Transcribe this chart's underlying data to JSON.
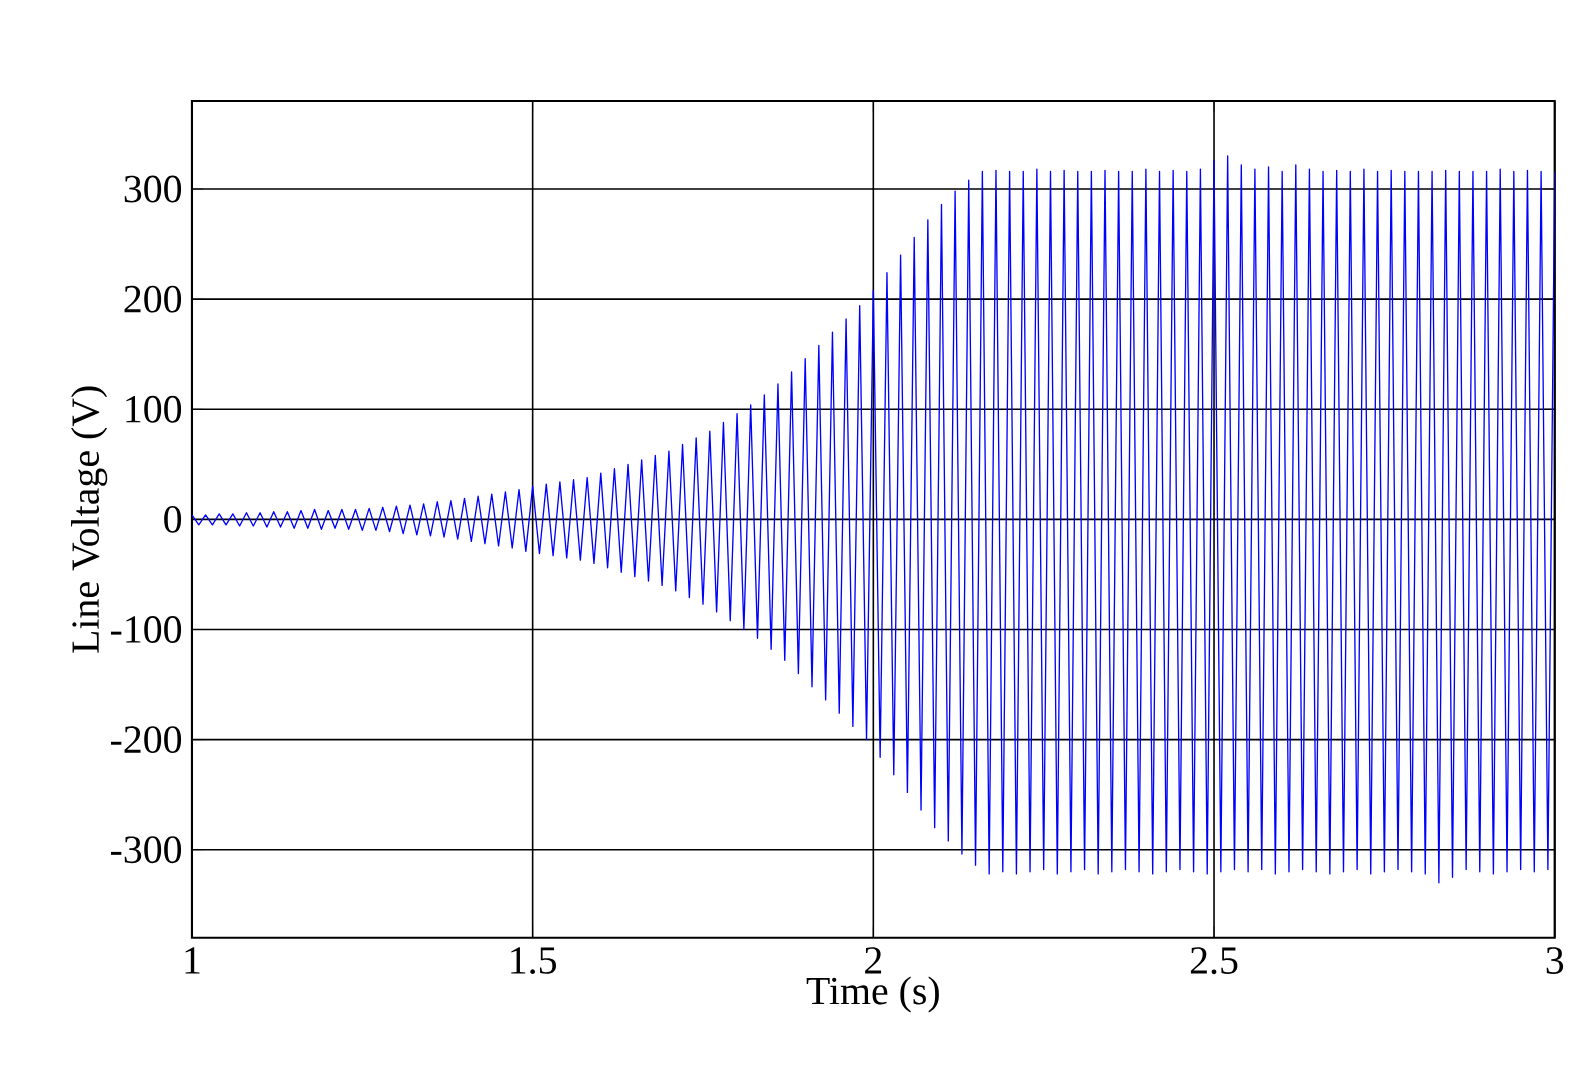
{
  "chart_data": {
    "type": "line",
    "xlabel": "Time (s)",
    "ylabel": "Line Voltage  (V)",
    "xlim": [
      1,
      3
    ],
    "ylim": [
      -380,
      380
    ],
    "xticks": [
      1,
      1.5,
      2,
      2.5,
      3
    ],
    "yticks": [
      -300,
      -200,
      -100,
      0,
      100,
      200,
      300
    ],
    "grid": true,
    "marker": "none",
    "line_style": "solid",
    "series": [
      {
        "color": "#0000ff",
        "x": [
          1,
          1.01,
          1.02,
          1.03,
          1.04,
          1.05,
          1.06,
          1.07,
          1.08,
          1.09,
          1.1,
          1.11,
          1.12,
          1.13,
          1.14,
          1.15,
          1.16,
          1.17,
          1.18,
          1.19,
          1.2,
          1.21,
          1.22,
          1.23,
          1.24,
          1.25,
          1.26,
          1.27,
          1.28,
          1.29,
          1.3,
          1.31,
          1.32,
          1.33,
          1.34,
          1.35,
          1.36,
          1.37,
          1.38,
          1.39,
          1.4,
          1.41,
          1.42,
          1.43,
          1.44,
          1.45,
          1.46,
          1.47,
          1.48,
          1.49,
          1.5,
          1.51,
          1.52,
          1.53,
          1.54,
          1.55,
          1.56,
          1.57,
          1.58,
          1.59,
          1.6,
          1.61,
          1.62,
          1.63,
          1.64,
          1.65,
          1.66,
          1.67,
          1.68,
          1.69,
          1.7,
          1.71,
          1.72,
          1.73,
          1.74,
          1.75,
          1.76,
          1.77,
          1.78,
          1.79,
          1.8,
          1.81,
          1.82,
          1.83,
          1.84,
          1.85,
          1.86,
          1.87,
          1.88,
          1.89,
          1.9,
          1.91,
          1.92,
          1.93,
          1.94,
          1.95,
          1.96,
          1.97,
          1.98,
          1.99,
          2,
          2.01,
          2.02,
          2.03,
          2.04,
          2.05,
          2.06,
          2.07,
          2.08,
          2.09,
          2.1,
          2.11,
          2.12,
          2.13,
          2.14,
          2.15,
          2.16,
          2.17,
          2.18,
          2.19,
          2.2,
          2.21,
          2.22,
          2.23,
          2.24,
          2.25,
          2.26,
          2.27,
          2.28,
          2.29,
          2.3,
          2.31,
          2.32,
          2.33,
          2.34,
          2.35,
          2.36,
          2.37,
          2.38,
          2.39,
          2.4,
          2.41,
          2.42,
          2.43,
          2.44,
          2.45,
          2.46,
          2.47,
          2.48,
          2.49,
          2.5,
          2.51,
          2.52,
          2.53,
          2.54,
          2.55,
          2.56,
          2.57,
          2.58,
          2.59,
          2.6,
          2.61,
          2.62,
          2.63,
          2.64,
          2.65,
          2.66,
          2.67,
          2.68,
          2.69,
          2.7,
          2.71,
          2.72,
          2.73,
          2.74,
          2.75,
          2.76,
          2.77,
          2.78,
          2.79,
          2.8,
          2.81,
          2.82,
          2.83,
          2.84,
          2.85,
          2.86,
          2.87,
          2.88,
          2.89,
          2.9,
          2.91,
          2.92,
          2.93,
          2.94,
          2.95,
          2.96,
          2.97,
          2.98,
          2.99,
          3
        ],
        "values": [
          4,
          -5,
          4,
          -5,
          5,
          -5,
          5,
          -6,
          6,
          -6,
          6,
          -7,
          7,
          -7,
          7,
          -8,
          8,
          -8,
          9,
          -9,
          8,
          -8,
          9,
          -9,
          9,
          -10,
          10,
          -10,
          11,
          -11,
          12,
          -13,
          13,
          -14,
          14,
          -15,
          16,
          -16,
          17,
          -18,
          19,
          -20,
          21,
          -22,
          23,
          -24,
          25,
          -26,
          27,
          -29,
          30,
          -31,
          32,
          -33,
          34,
          -35,
          36,
          -37,
          38,
          -40,
          42,
          -44,
          46,
          -48,
          50,
          -52,
          54,
          -56,
          58,
          -60,
          62,
          -65,
          68,
          -71,
          74,
          -77,
          80,
          -84,
          88,
          -92,
          96,
          -100,
          104,
          -108,
          113,
          -118,
          123,
          -128,
          134,
          -140,
          146,
          -152,
          158,
          -164,
          170,
          -176,
          182,
          -188,
          194,
          -200,
          208,
          -216,
          224,
          -232,
          240,
          -248,
          256,
          -264,
          272,
          -280,
          286,
          -292,
          298,
          -304,
          308,
          -314,
          316,
          -322,
          317,
          -320,
          316,
          -322,
          316,
          -320,
          318,
          -318,
          316,
          -322,
          317,
          -320,
          316,
          -318,
          316,
          -322,
          317,
          -320,
          316,
          -318,
          316,
          -320,
          318,
          -322,
          316,
          -320,
          317,
          -318,
          316,
          -320,
          318,
          -322,
          326,
          -320,
          330,
          -318,
          322,
          -320,
          318,
          -318,
          320,
          -322,
          316,
          -320,
          322,
          -318,
          318,
          -320,
          316,
          -322,
          317,
          -320,
          316,
          -318,
          318,
          -322,
          316,
          -320,
          317,
          -318,
          316,
          -320,
          316,
          -322,
          316,
          -330,
          317,
          -325,
          316,
          -318,
          316,
          -320,
          316,
          -322,
          318,
          -320,
          316,
          -318,
          317,
          -320,
          316,
          -318,
          316
        ]
      }
    ]
  }
}
